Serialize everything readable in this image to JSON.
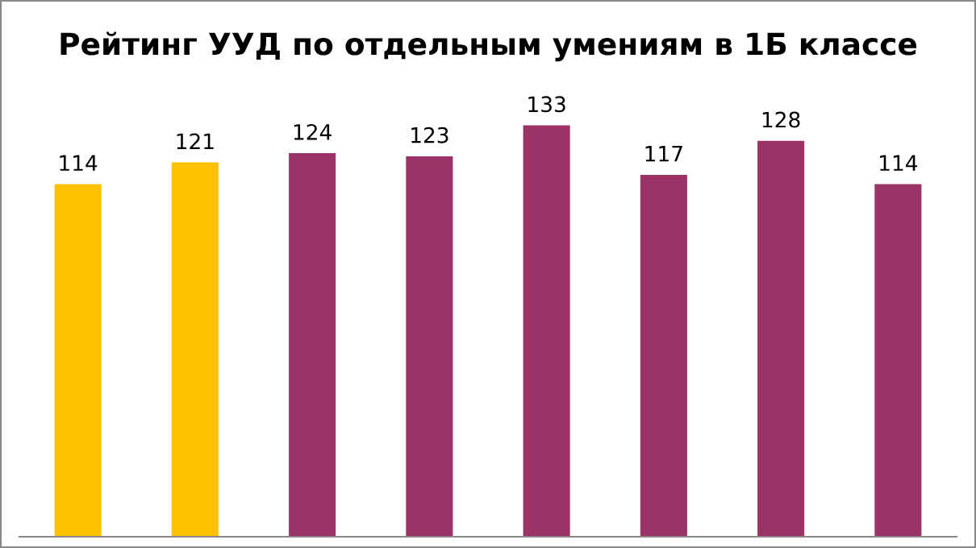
{
  "chart_data": {
    "type": "bar",
    "title": "Рейтинг УУД по отдельным умениям в 1Б классе",
    "categories": [
      null,
      null,
      null,
      null,
      null,
      null,
      null,
      null
    ],
    "values": [
      114,
      121,
      124,
      123,
      133,
      117,
      128,
      114
    ],
    "colors": [
      "#ffc000",
      "#ffc000",
      "#9b3366",
      "#9b3366",
      "#9b3366",
      "#9b3366",
      "#9b3366",
      "#9b3366"
    ],
    "data_labels": true,
    "tick_labels": false,
    "grid": false,
    "legend": false
  }
}
